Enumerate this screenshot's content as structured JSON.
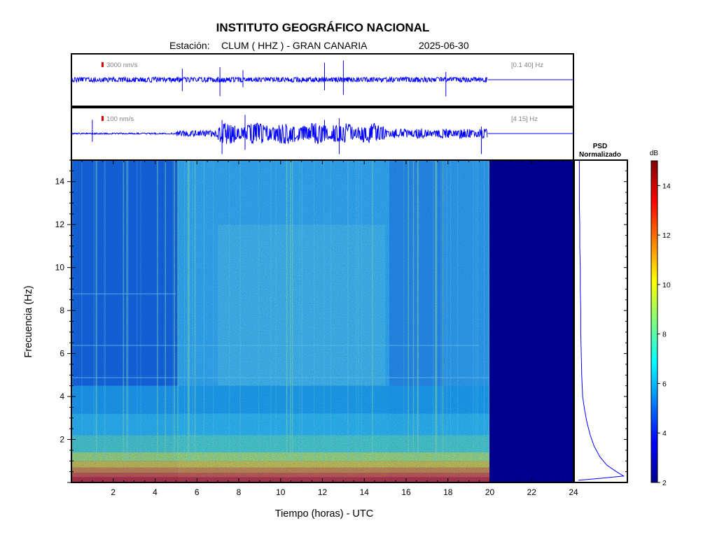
{
  "header": {
    "title": "INSTITUTO GEOGRÁFICO NACIONAL",
    "station_prefix": "Estación:",
    "station": "CLUM ( HHZ ) - GRAN CANARIA",
    "date": "2025-06-30"
  },
  "colors": {
    "trace": "#0000ff",
    "scale_mark": "#dd0000",
    "no_data": "#00008f"
  },
  "chart_data": [
    {
      "type": "line",
      "name": "seismogram-broadband",
      "scale_label": "3000 nm/s",
      "band_label": "[0.1 40] Hz",
      "x_range": [
        0,
        24
      ],
      "data_end_hour": 19.9,
      "spikes_hours": [
        5.3,
        7.1,
        8.2,
        12.1,
        13.0,
        17.9
      ]
    },
    {
      "type": "line",
      "name": "seismogram-filtered",
      "scale_label": "100 nm/s",
      "band_label": "[4 15] Hz",
      "x_range": [
        0,
        24
      ],
      "data_end_hour": 19.9,
      "spikes_hours": [
        1.0,
        7.2,
        8.3,
        12.1,
        12.8,
        19.6
      ]
    },
    {
      "type": "heatmap",
      "name": "spectrogram",
      "xlabel": "Tiempo (horas) - UTC",
      "ylabel": "Frecuencia (Hz)",
      "xlim": [
        0,
        24
      ],
      "ylim": [
        0,
        15
      ],
      "x_ticks": [
        2,
        4,
        6,
        8,
        10,
        12,
        14,
        16,
        18,
        20,
        22,
        24
      ],
      "y_ticks": [
        2,
        4,
        6,
        8,
        10,
        12,
        14
      ],
      "data_end_hour": 20,
      "colorbar": {
        "label": "dB",
        "range": [
          2,
          15
        ],
        "ticks": [
          2,
          4,
          6,
          8,
          10,
          12,
          14
        ]
      }
    },
    {
      "type": "line",
      "name": "psd-normalized",
      "title_line1": "PSD",
      "title_line2": "Normalizado",
      "ylim": [
        0,
        15
      ],
      "points": [
        [
          0.0,
          0.1
        ],
        [
          0.5,
          0.2
        ],
        [
          0.95,
          0.3
        ],
        [
          0.8,
          0.5
        ],
        [
          0.6,
          0.8
        ],
        [
          0.45,
          1.2
        ],
        [
          0.33,
          1.7
        ],
        [
          0.25,
          2.2
        ],
        [
          0.18,
          2.8
        ],
        [
          0.13,
          3.4
        ],
        [
          0.09,
          4.0
        ],
        [
          0.07,
          5.0
        ],
        [
          0.06,
          6.0
        ],
        [
          0.05,
          7.0
        ],
        [
          0.05,
          8.0
        ],
        [
          0.04,
          9.0
        ],
        [
          0.04,
          10.0
        ],
        [
          0.03,
          11.0
        ],
        [
          0.03,
          12.0
        ],
        [
          0.02,
          13.0
        ],
        [
          0.02,
          14.0
        ],
        [
          0.02,
          15.0
        ]
      ]
    }
  ]
}
